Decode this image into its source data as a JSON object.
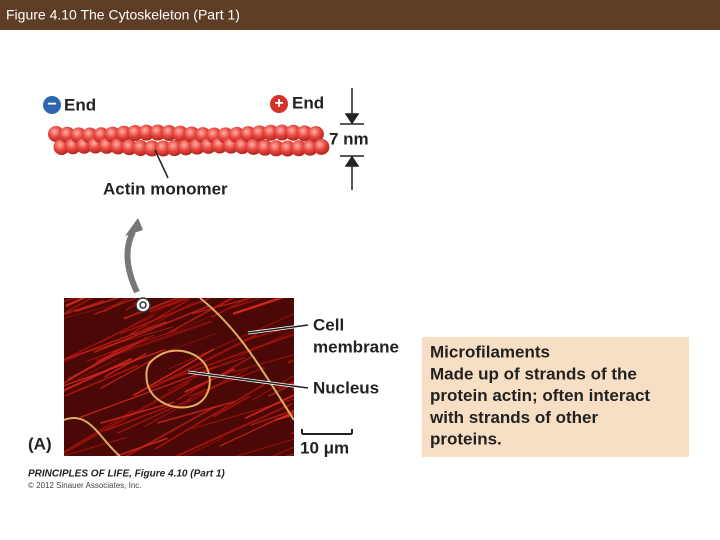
{
  "header": {
    "title": "Figure 4.10  The Cytoskeleton (Part 1)"
  },
  "figure": {
    "minus_end": {
      "sign": "−",
      "text": "End"
    },
    "plus_end": {
      "sign": "+",
      "text": "End"
    },
    "width_label": "7 nm",
    "monomer_label": "Actin monomer",
    "membrane_label": [
      "Cell",
      "membrane"
    ],
    "nucleus_label": "Nucleus",
    "scale_label": "10 μm",
    "panel_label": "(A)"
  },
  "info_box": {
    "title": "Microfilaments",
    "lines": [
      "Made up of strands of the",
      "protein actin; often interact",
      "with strands of other",
      "proteins."
    ]
  },
  "credits": {
    "source": "PRINCIPLES OF LIFE, Figure 4.10 (Part 1)",
    "copyright": "© 2012 Sinauer Associates, Inc."
  }
}
